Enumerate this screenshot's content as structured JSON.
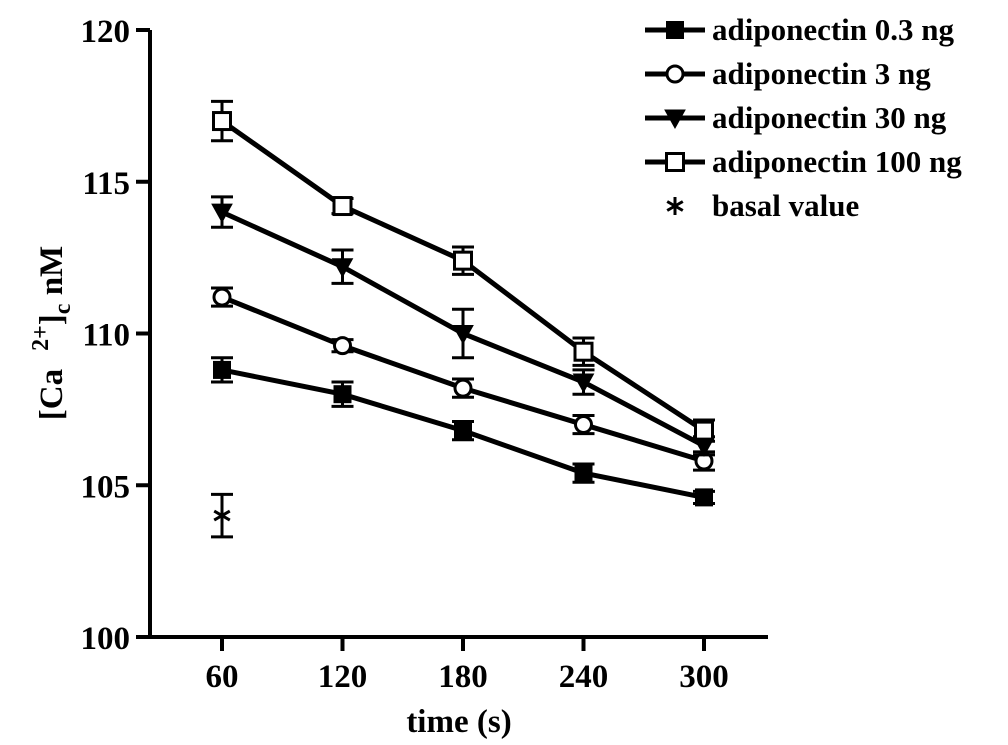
{
  "chart_data": {
    "type": "line",
    "title": "",
    "xlabel": "time (s)",
    "ylabel_main": "[Ca",
    "ylabel_sup": "2+",
    "ylabel_close": "]",
    "ylabel_sub": "c",
    "ylabel_unit": " nM",
    "xlim": [
      0,
      390
    ],
    "ylim": [
      100,
      120
    ],
    "x_ticks": [
      60,
      120,
      180,
      240,
      300
    ],
    "y_ticks": [
      100,
      105,
      110,
      115,
      120
    ],
    "legend_position": "top-right",
    "series": [
      {
        "name": "adiponectin 0.3 ng",
        "marker": "filled-square",
        "x": [
          60,
          120,
          180,
          240,
          300
        ],
        "y": [
          108.8,
          108.0,
          106.8,
          105.4,
          104.6
        ],
        "err": [
          0.4,
          0.4,
          0.3,
          0.3,
          0.2
        ]
      },
      {
        "name": "adiponectin 3 ng",
        "marker": "open-circle",
        "x": [
          60,
          120,
          180,
          240,
          300
        ],
        "y": [
          111.2,
          109.6,
          108.2,
          107.0,
          105.8
        ],
        "err": [
          0.3,
          0.2,
          0.3,
          0.3,
          0.3
        ]
      },
      {
        "name": "adiponectin 30 ng",
        "marker": "filled-triangle-down",
        "x": [
          60,
          120,
          180,
          240,
          300
        ],
        "y": [
          114.0,
          112.2,
          110.0,
          108.4,
          106.3
        ],
        "err": [
          0.5,
          0.55,
          0.8,
          0.4,
          0.3
        ]
      },
      {
        "name": "adiponectin 100 ng",
        "marker": "open-square",
        "x": [
          60,
          120,
          180,
          240,
          300
        ],
        "y": [
          117.0,
          114.2,
          112.4,
          109.4,
          106.8
        ],
        "err": [
          0.65,
          0.25,
          0.45,
          0.45,
          0.35
        ]
      },
      {
        "name": "basal value",
        "marker": "asterisk",
        "x": [
          60
        ],
        "y": [
          104.0
        ],
        "err": [
          0.7
        ]
      }
    ]
  }
}
